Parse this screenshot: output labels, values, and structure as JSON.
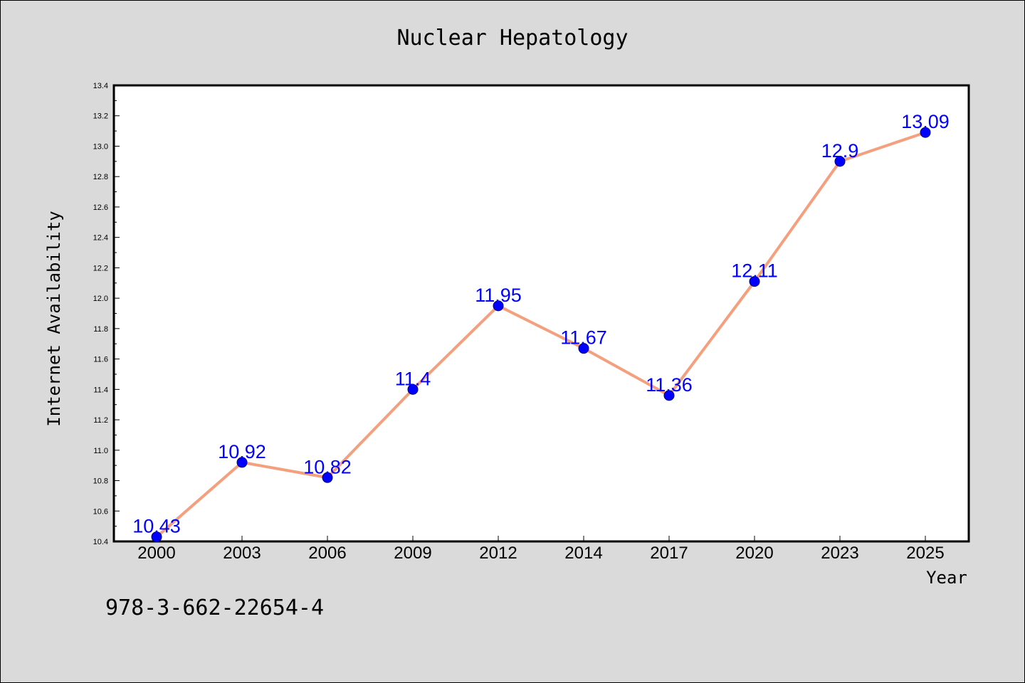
{
  "chart_data": {
    "type": "line",
    "title": "Nuclear Hepatology",
    "xlabel": "Year",
    "ylabel": "Internet Availability",
    "categories": [
      "2000",
      "2003",
      "2006",
      "2009",
      "2012",
      "2014",
      "2017",
      "2020",
      "2023",
      "2025"
    ],
    "series": [
      {
        "values": [
          10.43,
          10.92,
          10.82,
          11.4,
          11.95,
          11.67,
          11.36,
          12.11,
          12.9,
          13.09
        ],
        "labels": [
          "10.43",
          "10.92",
          "10.82",
          "11.4",
          "11.95",
          "11.67",
          "11.36",
          "12.11",
          "12.9",
          "13.09"
        ],
        "line_color": "#f4a07e",
        "marker_color": "#0000ff"
      }
    ],
    "ylim": [
      10.4,
      13.4
    ],
    "yticks": [
      "10.4",
      "10.6",
      "10.8",
      "11.0",
      "11.2",
      "11.4",
      "11.6",
      "11.8",
      "12.0",
      "12.2",
      "12.4",
      "12.6",
      "12.8",
      "13.0",
      "13.2",
      "13.4"
    ],
    "grid": false,
    "background_color": "#dadada",
    "plot_background": "#ffffff"
  },
  "footnote": "978-3-662-22654-4"
}
